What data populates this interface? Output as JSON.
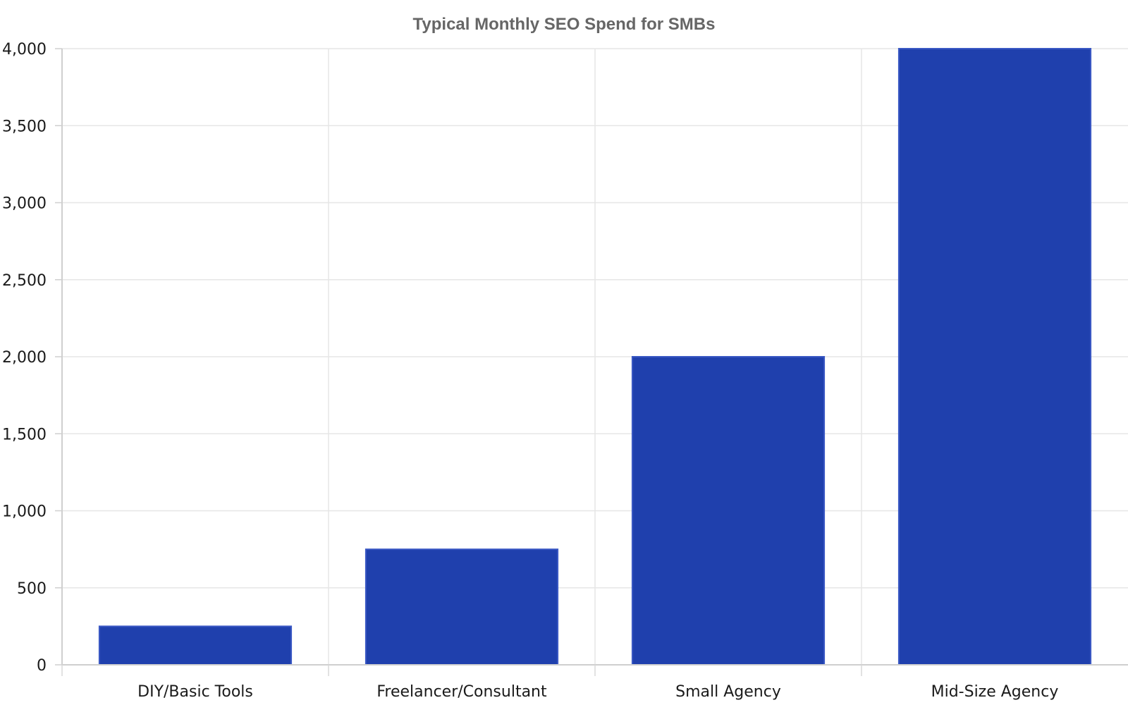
{
  "chart_data": {
    "type": "bar",
    "title": "Typical Monthly SEO Spend for SMBs",
    "xlabel": "",
    "ylabel": "",
    "categories": [
      "DIY/Basic Tools",
      "Freelancer/Consultant",
      "Small Agency",
      "Mid-Size Agency"
    ],
    "values": [
      250,
      750,
      2000,
      4000
    ],
    "ylim": [
      0,
      4000
    ],
    "yticks": [
      0,
      500,
      1000,
      1500,
      2000,
      2500,
      3000,
      3500,
      4000
    ],
    "ytick_labels": [
      "0",
      "500",
      "1,000",
      "1,500",
      "2,000",
      "2,500",
      "3,000",
      "3,500",
      "4,000"
    ],
    "grid": true,
    "legend": "none",
    "bar_color": "#1f40ad"
  }
}
